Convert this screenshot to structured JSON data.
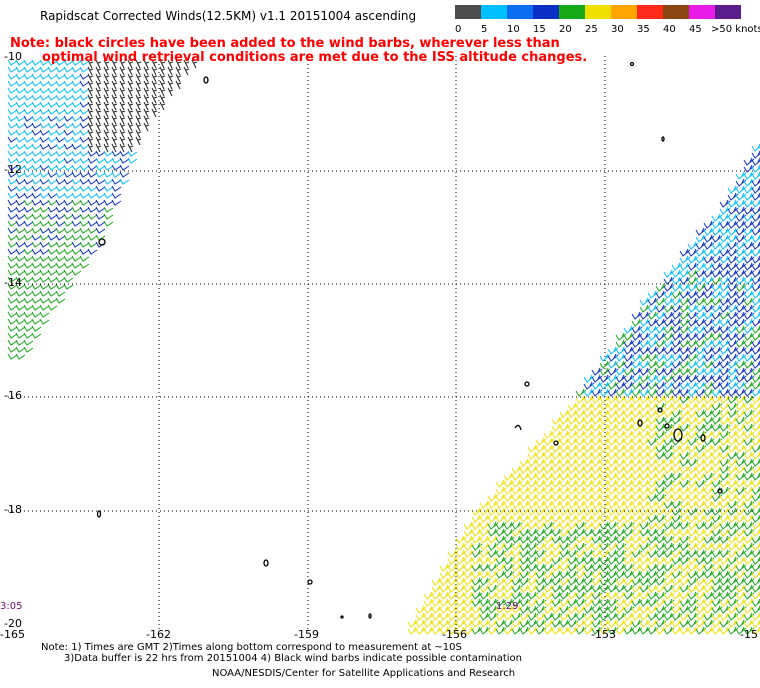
{
  "title": "Rapidscat Corrected Winds(12.5KM) v1.1 20151004 ascending",
  "note": {
    "line1": "Note: black circles have been added to the wind barbs, wherever less than",
    "line2": "optimal wind retrieval conditions are met due to the ISS altitude changes."
  },
  "legend": {
    "labels": [
      "0",
      "5",
      "10",
      "15",
      "20",
      "25",
      "30",
      "35",
      "40",
      "45",
      ">50 knots"
    ],
    "colors": [
      "#4d4d4d",
      "#00bfff",
      "#0a6cf0",
      "#0b2fc4",
      "#17a817",
      "#f0e000",
      "#ffa500",
      "#ff2a1a",
      "#8b4513",
      "#e81be8",
      "#5a1e8c"
    ]
  },
  "axes": {
    "lat_labels": [
      "-10",
      "-12",
      "-14",
      "-16",
      "-18",
      "-20"
    ],
    "lon_labels": [
      "-165",
      "-162",
      "-159",
      "-156",
      "-153",
      "-15"
    ]
  },
  "time_labels": [
    "3:05",
    "1:29"
  ],
  "footer": {
    "line1": "Note: 1) Times are GMT 2)Times along bottom correspond to measurement at ~10S",
    "line2": "3)Data buffer is 22 hrs from 20151004 4) Black wind barbs indicate possible contamination",
    "line3": "NOAA/NESDIS/Center for Satellite Applications and Research"
  },
  "barb_colors": {
    "black": "#222222",
    "cyan": "#00bfff",
    "blue": "#0b2fc4",
    "green": "#17a817",
    "yellow": "#f0e000"
  }
}
